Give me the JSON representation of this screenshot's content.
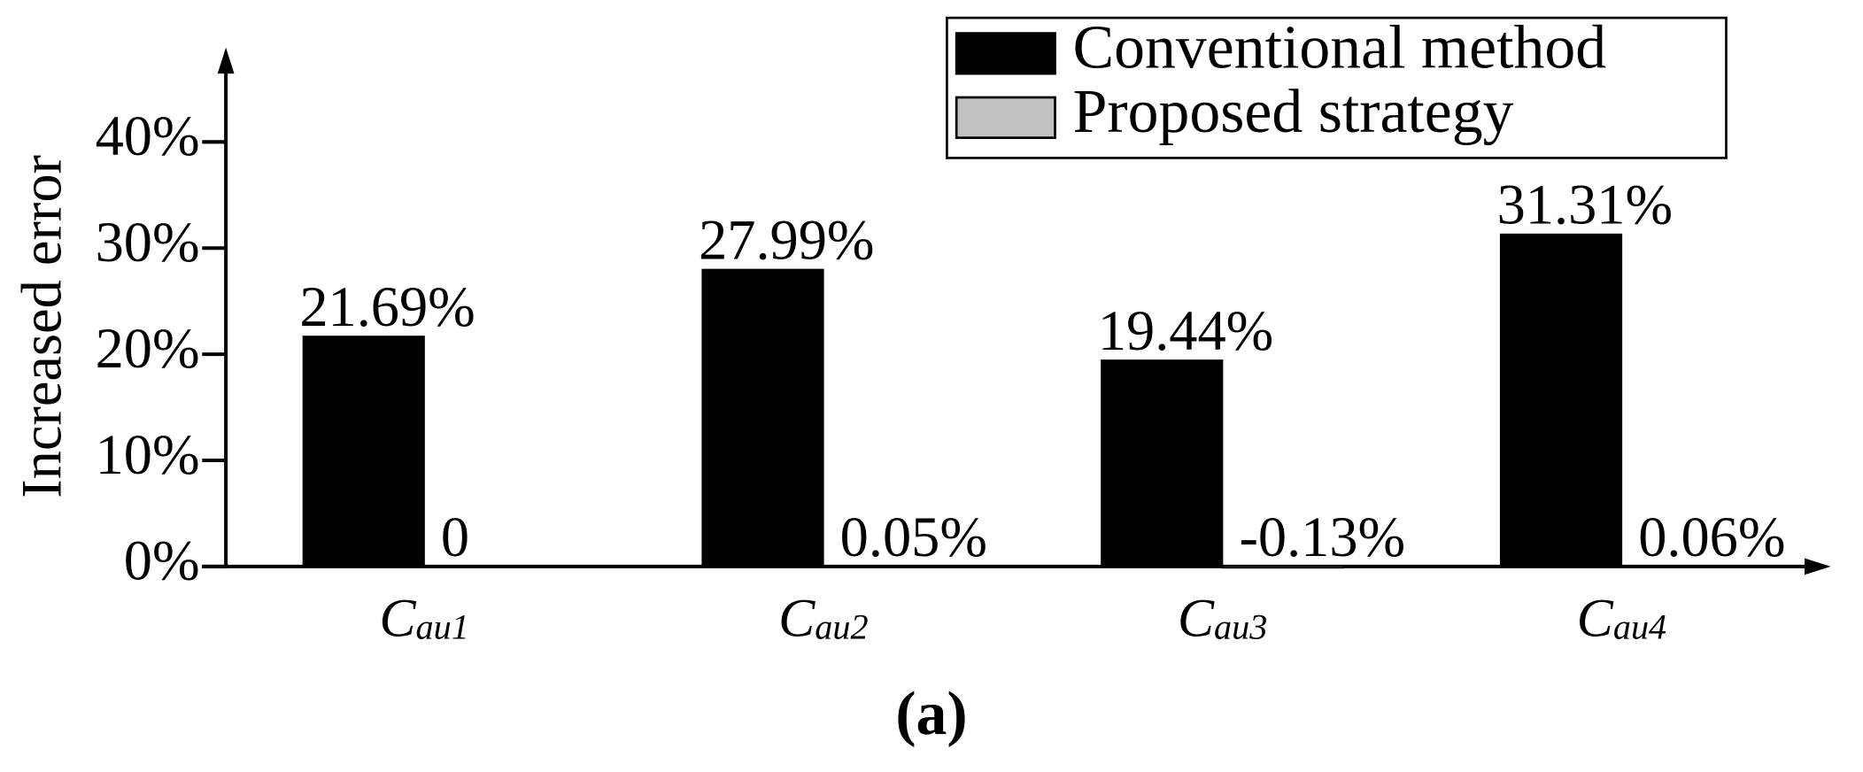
{
  "chart_data": {
    "type": "bar",
    "y_label": "Increased error",
    "caption": "(a)",
    "categories": [
      {
        "base": "C",
        "sub": "au1"
      },
      {
        "base": "C",
        "sub": "au2"
      },
      {
        "base": "C",
        "sub": "au3"
      },
      {
        "base": "C",
        "sub": "au4"
      }
    ],
    "series": [
      {
        "name": "Conventional method",
        "color": "#000000",
        "values": [
          21.69,
          27.99,
          19.44,
          31.31
        ],
        "value_labels": [
          "21.69%",
          "27.99%",
          "19.44%",
          "31.31%"
        ]
      },
      {
        "name": "Proposed strategy",
        "color": "#c0c0c0",
        "values": [
          0,
          0.05,
          -0.13,
          0.06
        ],
        "value_labels": [
          "0",
          "0.05%",
          "-0.13%",
          "0.06%"
        ]
      }
    ],
    "ylim": [
      0,
      48
    ],
    "yticks": [
      {
        "value": 0,
        "label": "0%"
      },
      {
        "value": 10,
        "label": "10%"
      },
      {
        "value": 20,
        "label": "20%"
      },
      {
        "value": 30,
        "label": "30%"
      },
      {
        "value": 40,
        "label": "40%"
      }
    ],
    "legend": "top-right",
    "grid": false
  }
}
